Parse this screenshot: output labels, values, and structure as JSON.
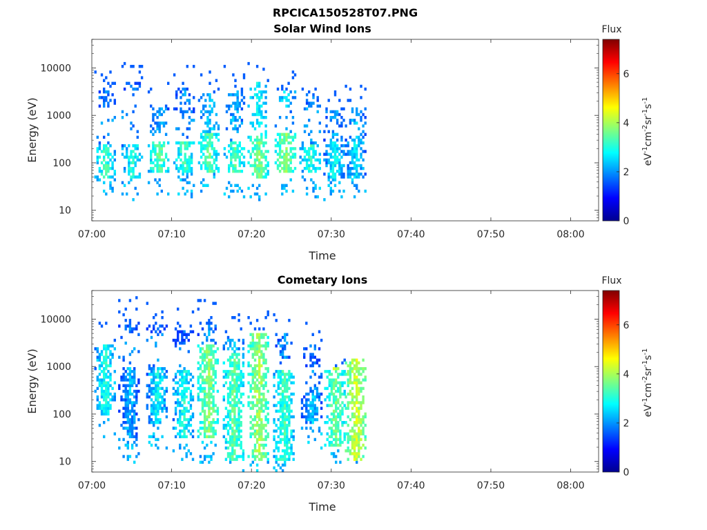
{
  "figure": {
    "title": "RPCICA150528T07.PNG"
  },
  "chart_data": [
    {
      "type": "heatmap",
      "title": "Solar Wind Ions",
      "xlabel": "Time",
      "ylabel": "Energy (eV)",
      "x_ticks": [
        "07:00",
        "07:10",
        "07:20",
        "07:30",
        "07:40",
        "07:50",
        "08:00"
      ],
      "x_range_minutes": [
        0,
        63.5
      ],
      "y_scale": "log",
      "y_ticks": [
        10,
        100,
        1000,
        10000
      ],
      "y_tick_labels": [
        "10",
        "100",
        "1000",
        "10000"
      ],
      "ylim": [
        6,
        40000
      ],
      "colorbar": {
        "title": "Flux",
        "unit": "eV-1cm-2sr-1s-1",
        "ticks": [
          0,
          2,
          4,
          6
        ],
        "range": [
          0,
          7.4
        ],
        "colormap": "jet"
      },
      "data_extent_minutes": [
        1,
        35
      ],
      "bursts": [
        {
          "t": 1.6,
          "core_E": [
            50,
            250
          ],
          "core_flux": 3.2,
          "high_E": [
            1500,
            3500
          ],
          "high_flux": 2.0
        },
        {
          "t": 5.0,
          "core_E": [
            50,
            250
          ],
          "core_flux": 3.0,
          "high_E": [
            3500,
            5000
          ],
          "high_flux": 1.8
        },
        {
          "t": 8.3,
          "core_E": [
            60,
            300
          ],
          "core_flux": 3.5,
          "high_E": [
            500,
            1500
          ],
          "high_flux": 2.2
        },
        {
          "t": 11.5,
          "core_E": [
            60,
            300
          ],
          "core_flux": 3.3,
          "high_E": [
            800,
            4000
          ],
          "high_flux": 2.0
        },
        {
          "t": 14.6,
          "core_E": [
            60,
            400
          ],
          "core_flux": 3.4,
          "high_E": [
            300,
            3000
          ],
          "high_flux": 2.5
        },
        {
          "t": 17.8,
          "core_E": [
            60,
            300
          ],
          "core_flux": 3.4,
          "high_E": [
            500,
            3500
          ],
          "high_flux": 2.3
        },
        {
          "t": 20.8,
          "core_E": [
            50,
            350
          ],
          "core_flux": 3.7,
          "high_E": [
            300,
            5000
          ],
          "high_flux": 2.8
        },
        {
          "t": 24.2,
          "core_E": [
            60,
            400
          ],
          "core_flux": 3.8,
          "high_E": [
            1500,
            3500
          ],
          "high_flux": 2.5
        },
        {
          "t": 27.3,
          "core_E": [
            60,
            250
          ],
          "core_flux": 3.1,
          "high_E": [
            1500,
            3000
          ],
          "high_flux": 2.0
        },
        {
          "t": 30.3,
          "core_E": [
            50,
            300
          ],
          "core_flux": 2.8,
          "high_E": [
            300,
            1200
          ],
          "high_flux": 2.2
        },
        {
          "t": 33.0,
          "core_E": [
            50,
            300
          ],
          "core_flux": 2.7,
          "high_E": [
            300,
            1500
          ],
          "high_flux": 2.3
        }
      ]
    },
    {
      "type": "heatmap",
      "title": "Cometary Ions",
      "xlabel": "Time",
      "ylabel": "Energy (eV)",
      "x_ticks": [
        "07:00",
        "07:10",
        "07:20",
        "07:30",
        "07:40",
        "07:50",
        "08:00"
      ],
      "x_range_minutes": [
        0,
        63.5
      ],
      "y_scale": "log",
      "y_ticks": [
        10,
        100,
        1000,
        10000
      ],
      "y_tick_labels": [
        "10",
        "100",
        "1000",
        "10000"
      ],
      "ylim": [
        6,
        40000
      ],
      "colorbar": {
        "title": "Flux",
        "unit": "eV-1cm-2sr-1s-1",
        "ticks": [
          0,
          2,
          4,
          6
        ],
        "range": [
          0,
          7.4
        ],
        "colormap": "jet"
      },
      "data_extent_minutes": [
        1,
        35
      ],
      "bursts": [
        {
          "t": 1.6,
          "core_E": [
            100,
            3000
          ],
          "core_flux": 3.0,
          "high_E": [
            1000,
            3000
          ],
          "high_flux": 3.4
        },
        {
          "t": 4.6,
          "core_E": [
            30,
            1000
          ],
          "core_flux": 2.3,
          "high_E": [
            5000,
            9000
          ],
          "high_flux": 1.8
        },
        {
          "t": 8.1,
          "core_E": [
            60,
            1000
          ],
          "core_flux": 2.8,
          "high_E": [
            5000,
            9000
          ],
          "high_flux": 1.8
        },
        {
          "t": 11.4,
          "core_E": [
            30,
            800
          ],
          "core_flux": 3.0,
          "high_E": [
            3000,
            6000
          ],
          "high_flux": 1.6
        },
        {
          "t": 14.5,
          "core_E": [
            30,
            3000
          ],
          "core_flux": 3.8,
          "high_E": [
            3000,
            8000
          ],
          "high_flux": 2.0
        },
        {
          "t": 17.7,
          "core_E": [
            10,
            2000
          ],
          "core_flux": 3.5,
          "high_E": [
            2000,
            4000
          ],
          "high_flux": 2.4
        },
        {
          "t": 20.8,
          "core_E": [
            10,
            5000
          ],
          "core_flux": 4.0,
          "high_E": [
            1000,
            5000
          ],
          "high_flux": 3.2
        },
        {
          "t": 24.0,
          "core_E": [
            10,
            800
          ],
          "core_flux": 3.3,
          "high_E": [
            1500,
            5000
          ],
          "high_flux": 2.0
        },
        {
          "t": 27.5,
          "core_E": [
            60,
            300
          ],
          "core_flux": 2.4,
          "high_E": [
            1000,
            3000
          ],
          "high_flux": 1.8
        },
        {
          "t": 30.4,
          "core_E": [
            20,
            800
          ],
          "core_flux": 3.6,
          "high_E": [
            300,
            1000
          ],
          "high_flux": 4.4
        },
        {
          "t": 33.0,
          "core_E": [
            10,
            1500
          ],
          "core_flux": 4.3,
          "high_E": [
            10,
            60
          ],
          "high_flux": 5.6
        }
      ]
    }
  ]
}
